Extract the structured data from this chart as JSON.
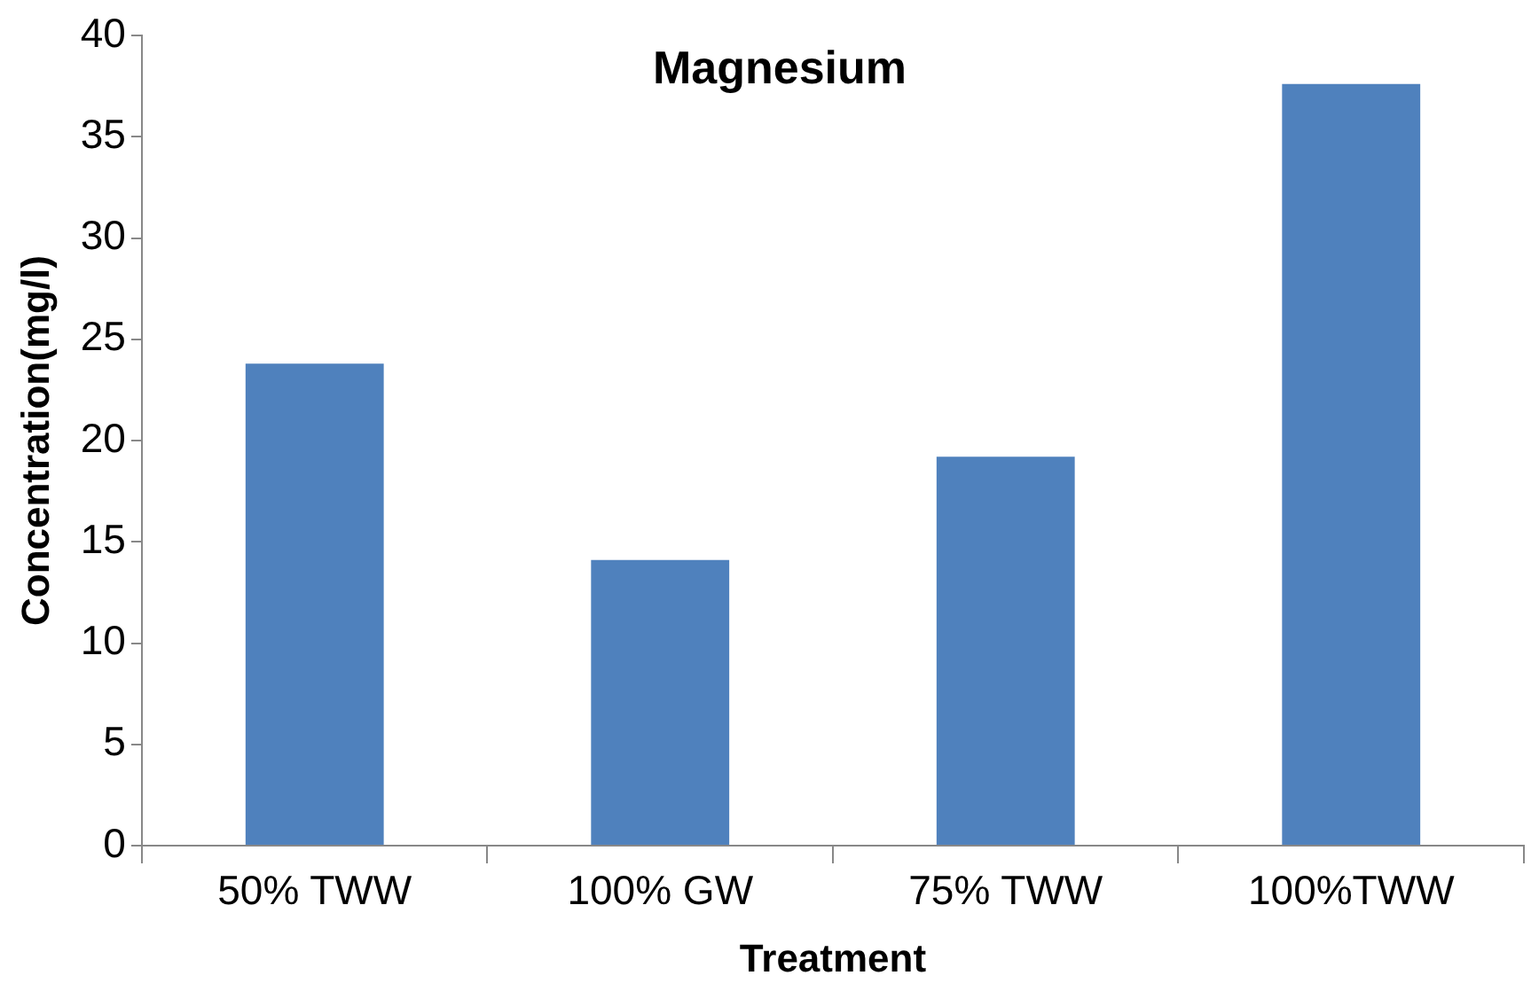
{
  "chart_data": {
    "type": "bar",
    "title": "Magnesium",
    "xlabel": "Treatment",
    "ylabel": "Concentration(mg/l)",
    "categories": [
      "50% TWW",
      "100% GW",
      "75% TWW",
      "100%TWW"
    ],
    "values": [
      23.8,
      14.1,
      19.2,
      37.6
    ],
    "color": "#4f81bd",
    "ylim": [
      0,
      40
    ],
    "yticks": [
      0,
      5,
      10,
      15,
      20,
      25,
      30,
      35,
      40
    ],
    "grid": false,
    "legend": false
  }
}
